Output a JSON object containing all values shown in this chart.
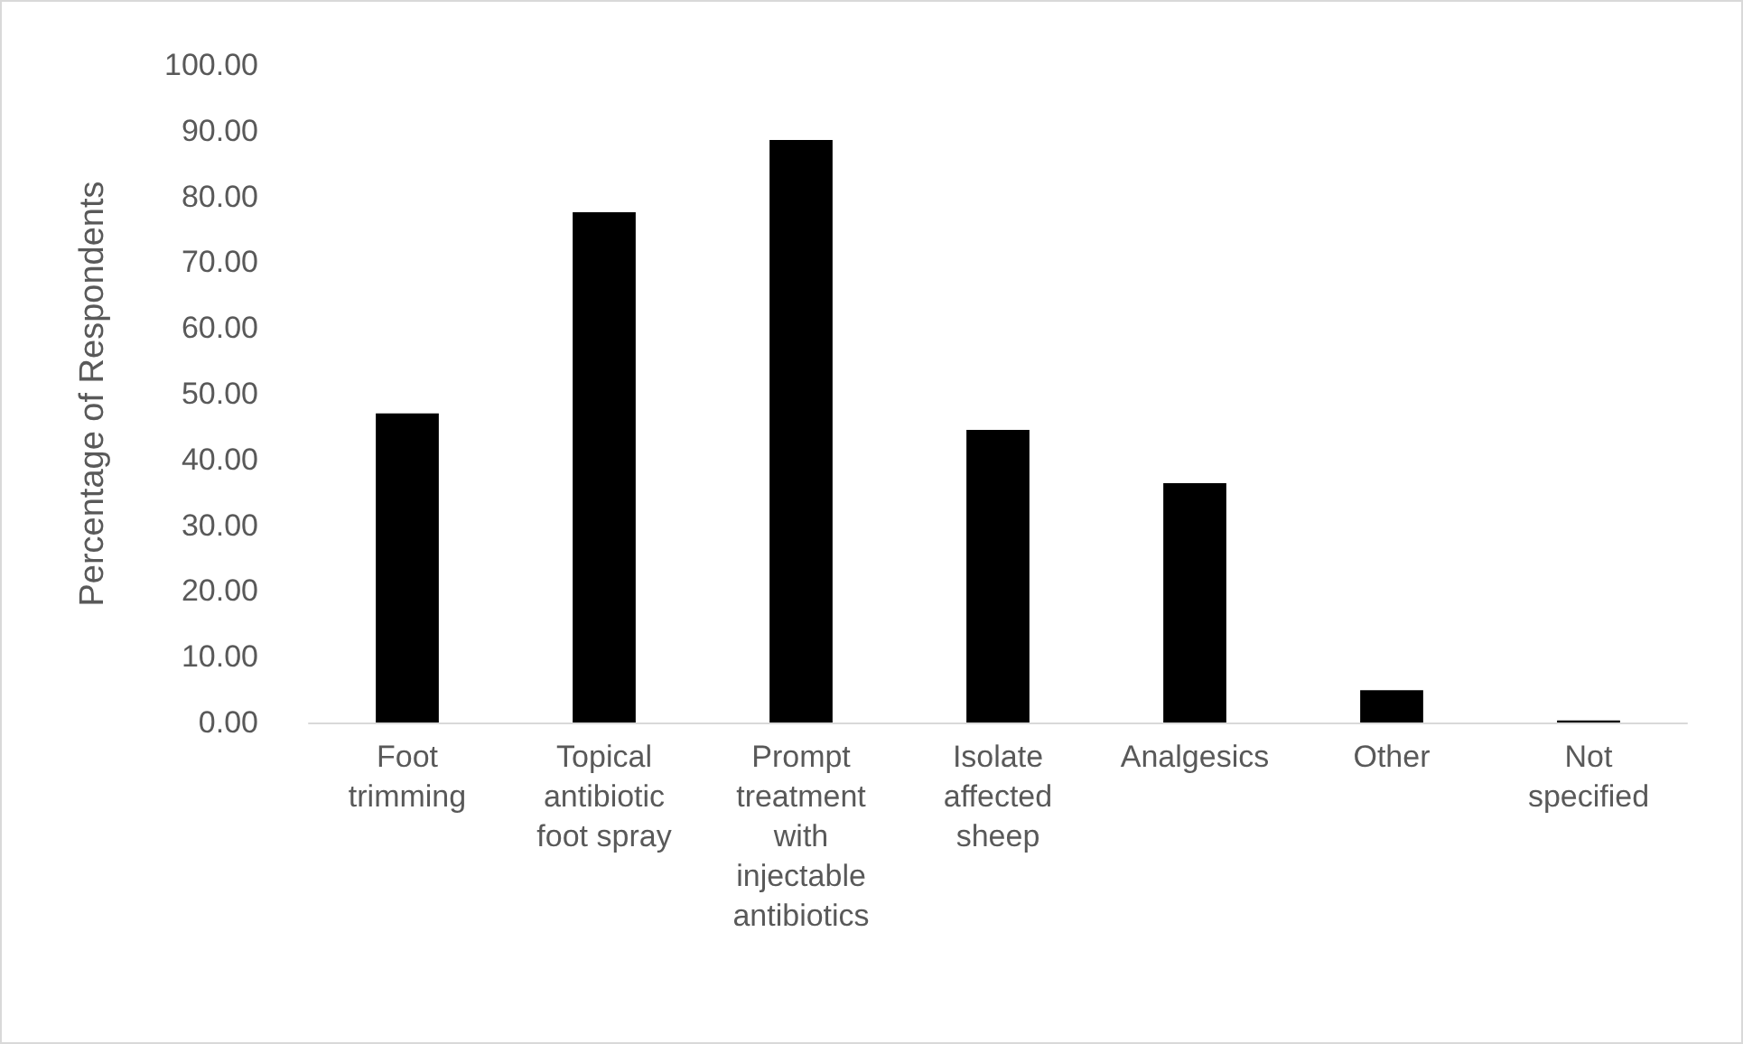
{
  "chart_data": {
    "type": "bar",
    "ylabel": "Percentage of Respondents",
    "categories": [
      "Foot trimming",
      "Topical antibiotic foot spray",
      "Prompt treatment with injectable antibiotics",
      "Isolate affected sheep",
      "Analgesics",
      "Other",
      "Not specified"
    ],
    "values": [
      47.0,
      77.6,
      88.6,
      44.5,
      36.4,
      4.9,
      0.3
    ],
    "color": "#000000",
    "ylim": [
      0,
      100
    ],
    "yticks": [
      {
        "value": 0,
        "label": "0.00"
      },
      {
        "value": 10,
        "label": "10.00"
      },
      {
        "value": 20,
        "label": "20.00"
      },
      {
        "value": 30,
        "label": "30.00"
      },
      {
        "value": 40,
        "label": "40.00"
      },
      {
        "value": 50,
        "label": "50.00"
      },
      {
        "value": 60,
        "label": "60.00"
      },
      {
        "value": 70,
        "label": "70.00"
      },
      {
        "value": 80,
        "label": "80.00"
      },
      {
        "value": 90,
        "label": "90.00"
      },
      {
        "value": 100,
        "label": "100.00"
      }
    ],
    "grid": false
  }
}
